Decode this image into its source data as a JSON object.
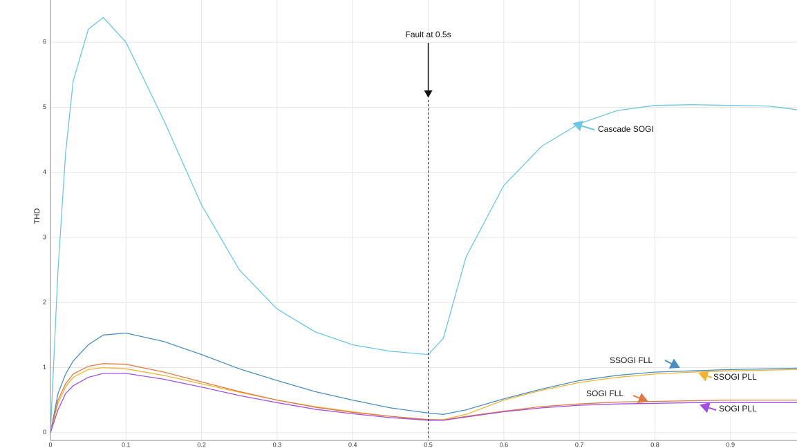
{
  "chart_data": {
    "type": "line",
    "y_label": "THD",
    "annotation": "Fault at 0.5s",
    "fault_x": 0.5,
    "x": [
      0,
      0.01,
      0.02,
      0.03,
      0.05,
      0.07,
      0.1,
      0.15,
      0.2,
      0.25,
      0.3,
      0.35,
      0.4,
      0.45,
      0.5,
      0.52,
      0.55,
      0.6,
      0.65,
      0.7,
      0.75,
      0.8,
      0.85,
      0.9,
      0.95,
      0.99
    ],
    "series": [
      {
        "name": "Cascade SOGI",
        "color": "#6cc6e6",
        "values": [
          0,
          2.5,
          4.3,
          5.4,
          6.2,
          6.38,
          6.0,
          4.8,
          3.5,
          2.5,
          1.9,
          1.55,
          1.35,
          1.25,
          1.2,
          1.45,
          2.7,
          3.8,
          4.4,
          4.75,
          4.95,
          5.03,
          5.04,
          5.03,
          5.02,
          4.96
        ]
      },
      {
        "name": "SSOGI FLL",
        "color": "#4a8fc2",
        "values": [
          0,
          0.6,
          0.9,
          1.1,
          1.35,
          1.5,
          1.53,
          1.4,
          1.2,
          0.98,
          0.8,
          0.63,
          0.5,
          0.38,
          0.3,
          0.28,
          0.35,
          0.52,
          0.67,
          0.8,
          0.88,
          0.93,
          0.95,
          0.97,
          0.98,
          0.99
        ]
      },
      {
        "name": "SSOGI PLL",
        "color": "#f0b432",
        "values": [
          0,
          0.45,
          0.7,
          0.85,
          0.97,
          1.0,
          0.98,
          0.88,
          0.75,
          0.62,
          0.5,
          0.4,
          0.32,
          0.25,
          0.2,
          0.2,
          0.28,
          0.5,
          0.65,
          0.77,
          0.85,
          0.9,
          0.93,
          0.95,
          0.96,
          0.97
        ]
      },
      {
        "name": "SOGI FLL",
        "color": "#e07a45",
        "values": [
          0,
          0.5,
          0.75,
          0.9,
          1.02,
          1.06,
          1.05,
          0.93,
          0.78,
          0.63,
          0.5,
          0.39,
          0.31,
          0.25,
          0.2,
          0.19,
          0.25,
          0.33,
          0.4,
          0.44,
          0.47,
          0.48,
          0.49,
          0.5,
          0.5,
          0.5
        ]
      },
      {
        "name": "SOGI PLL",
        "color": "#a24fe0",
        "values": [
          0,
          0.35,
          0.6,
          0.72,
          0.85,
          0.91,
          0.91,
          0.82,
          0.7,
          0.57,
          0.46,
          0.36,
          0.29,
          0.23,
          0.19,
          0.19,
          0.24,
          0.32,
          0.38,
          0.42,
          0.44,
          0.45,
          0.46,
          0.46,
          0.46,
          0.46
        ]
      }
    ],
    "xlim": [
      0,
      0.988
    ],
    "ylim": [
      -0.12,
      6.65
    ],
    "xticks": [
      0,
      0.1,
      0.2,
      0.3,
      0.4,
      0.5,
      0.6,
      0.7,
      0.8,
      0.9
    ],
    "yticks": [
      0,
      1,
      2,
      3,
      4,
      5,
      6
    ],
    "grid": true
  }
}
